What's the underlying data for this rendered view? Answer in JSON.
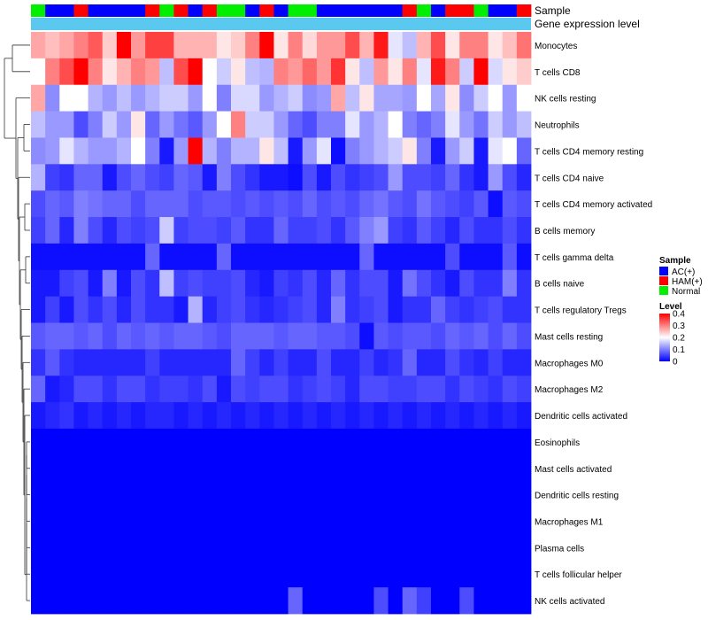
{
  "chart_data": {
    "type": "heatmap",
    "title": "",
    "annotation_rows": [
      "Sample",
      "Gene expression level"
    ],
    "legend": {
      "position": "right",
      "sample_title": "Sample",
      "sample_entries": [
        {
          "label": "AC(+)",
          "color": "#0000ff"
        },
        {
          "label": "HAM(+)",
          "color": "#ff0000"
        },
        {
          "label": "Normal",
          "color": "#00ee00"
        }
      ],
      "level_title": "Level",
      "level_ticks": [
        "0.4",
        "0.3",
        "0.2",
        "0.1",
        "0"
      ],
      "level_range": [
        0,
        0.4
      ],
      "low_color": "#0000ff",
      "mid_color": "#ffffff",
      "high_color": "#ff0000"
    },
    "expression_bar_color": "#5bc8f0",
    "samples": [
      "N",
      "A",
      "A",
      "H",
      "A",
      "A",
      "A",
      "A",
      "H",
      "N",
      "H",
      "A",
      "H",
      "N",
      "N",
      "A",
      "H",
      "A",
      "N",
      "N",
      "A",
      "A",
      "A",
      "A",
      "A",
      "A",
      "H",
      "N",
      "A",
      "H",
      "H",
      "N",
      "A",
      "A",
      "H"
    ],
    "rows": [
      "Monocytes",
      "T cells CD8",
      "NK cells resting",
      "Neutrophils",
      "T cells CD4 memory resting",
      "T cells CD4 naive",
      "T cells CD4 memory activated",
      "B cells memory",
      "T cells gamma delta",
      "B cells naive",
      "T cells regulatory  Tregs",
      "Mast cells resting",
      "Macrophages M0",
      "Macrophages M2",
      "Dendritic cells activated",
      "Eosinophils",
      "Mast cells activated",
      "Dendritic cells resting",
      "Macrophages M1",
      "Plasma cells",
      "T cells follicular helper",
      "NK cells activated"
    ],
    "values": [
      [
        0.27,
        0.25,
        0.27,
        0.3,
        0.33,
        0.24,
        0.4,
        0.28,
        0.35,
        0.35,
        0.26,
        0.26,
        0.26,
        0.22,
        0.24,
        0.3,
        0.4,
        0.22,
        0.3,
        0.23,
        0.28,
        0.28,
        0.34,
        0.26,
        0.38,
        0.18,
        0.15,
        0.26,
        0.34,
        0.22,
        0.3,
        0.3,
        0.22,
        0.25,
        0.31
      ],
      [
        0.2,
        0.3,
        0.34,
        0.4,
        0.3,
        0.22,
        0.26,
        0.3,
        0.28,
        0.15,
        0.34,
        0.4,
        0.2,
        0.16,
        0.22,
        0.15,
        0.14,
        0.3,
        0.28,
        0.32,
        0.28,
        0.36,
        0.22,
        0.15,
        0.28,
        0.22,
        0.3,
        0.18,
        0.38,
        0.3,
        0.16,
        0.4,
        0.17,
        0.22,
        0.24
      ],
      [
        0.27,
        0.11,
        0.2,
        0.2,
        0.14,
        0.12,
        0.15,
        0.12,
        0.14,
        0.16,
        0.16,
        0.12,
        0.2,
        0.1,
        0.17,
        0.17,
        0.12,
        0.14,
        0.16,
        0.11,
        0.12,
        0.27,
        0.15,
        0.22,
        0.13,
        0.13,
        0.12,
        0.2,
        0.13,
        0.22,
        0.11,
        0.16,
        0.2,
        0.12,
        0.2
      ],
      [
        0.15,
        0.12,
        0.12,
        0.06,
        0.1,
        0.16,
        0.12,
        0.22,
        0.08,
        0.12,
        0.09,
        0.07,
        0.12,
        0.2,
        0.3,
        0.16,
        0.16,
        0.12,
        0.08,
        0.06,
        0.1,
        0.1,
        0.18,
        0.12,
        0.14,
        0.2,
        0.1,
        0.08,
        0.1,
        0.18,
        0.12,
        0.09,
        0.16,
        0.12,
        0.15
      ],
      [
        0.11,
        0.12,
        0.18,
        0.14,
        0.12,
        0.12,
        0.14,
        0.2,
        0.1,
        0.02,
        0.12,
        0.4,
        0.14,
        0.1,
        0.14,
        0.14,
        0.22,
        0.15,
        0.02,
        0.12,
        0.18,
        0.01,
        0.1,
        0.12,
        0.14,
        0.16,
        0.22,
        0.1,
        0.02,
        0.12,
        0.16,
        0.02,
        0.18,
        0.2,
        0.08
      ],
      [
        0.14,
        0.05,
        0.04,
        0.08,
        0.08,
        0.02,
        0.06,
        0.08,
        0.06,
        0.05,
        0.08,
        0.07,
        0.02,
        0.1,
        0.06,
        0.04,
        0.02,
        0.02,
        0.01,
        0.06,
        0.02,
        0.06,
        0.04,
        0.05,
        0.06,
        0.12,
        0.06,
        0.06,
        0.05,
        0.08,
        0.04,
        0.02,
        0.12,
        0.06,
        0.03
      ],
      [
        0.06,
        0.08,
        0.07,
        0.1,
        0.09,
        0.08,
        0.08,
        0.06,
        0.08,
        0.08,
        0.08,
        0.06,
        0.07,
        0.07,
        0.06,
        0.07,
        0.06,
        0.07,
        0.06,
        0.08,
        0.06,
        0.07,
        0.06,
        0.08,
        0.09,
        0.07,
        0.06,
        0.09,
        0.07,
        0.06,
        0.05,
        0.07,
        0.01,
        0.07,
        0.06
      ],
      [
        0.05,
        0.08,
        0.03,
        0.1,
        0.06,
        0.03,
        0.06,
        0.05,
        0.06,
        0.16,
        0.05,
        0.06,
        0.06,
        0.05,
        0.07,
        0.04,
        0.04,
        0.08,
        0.05,
        0.05,
        0.06,
        0.04,
        0.07,
        0.1,
        0.12,
        0.05,
        0.04,
        0.07,
        0.05,
        0.03,
        0.06,
        0.04,
        0.04,
        0.06,
        0.04
      ],
      [
        0.01,
        0.01,
        0.01,
        0.01,
        0.01,
        0.01,
        0.01,
        0.01,
        0.08,
        0.01,
        0.01,
        0.01,
        0.01,
        0.08,
        0.01,
        0.01,
        0.01,
        0.01,
        0.01,
        0.01,
        0.01,
        0.01,
        0.01,
        0.08,
        0.01,
        0.01,
        0.01,
        0.01,
        0.01,
        0.06,
        0.01,
        0.01,
        0.01,
        0.07,
        0.01
      ],
      [
        0.02,
        0.02,
        0.05,
        0.06,
        0.02,
        0.1,
        0.02,
        0.06,
        0.04,
        0.15,
        0.05,
        0.06,
        0.05,
        0.05,
        0.06,
        0.03,
        0.02,
        0.05,
        0.04,
        0.06,
        0.03,
        0.08,
        0.04,
        0.06,
        0.06,
        0.02,
        0.09,
        0.06,
        0.04,
        0.02,
        0.06,
        0.04,
        0.04,
        0.1,
        0.04
      ],
      [
        0.02,
        0.05,
        0.02,
        0.06,
        0.04,
        0.06,
        0.03,
        0.06,
        0.04,
        0.04,
        0.02,
        0.14,
        0.03,
        0.05,
        0.06,
        0.04,
        0.03,
        0.04,
        0.05,
        0.06,
        0.03,
        0.1,
        0.04,
        0.05,
        0.06,
        0.02,
        0.04,
        0.04,
        0.08,
        0.05,
        0.04,
        0.05,
        0.06,
        0.04,
        0.04
      ],
      [
        0.07,
        0.08,
        0.08,
        0.07,
        0.08,
        0.06,
        0.08,
        0.07,
        0.08,
        0.07,
        0.08,
        0.08,
        0.07,
        0.06,
        0.08,
        0.08,
        0.08,
        0.07,
        0.08,
        0.08,
        0.07,
        0.07,
        0.06,
        0.01,
        0.07,
        0.06,
        0.07,
        0.07,
        0.06,
        0.08,
        0.07,
        0.08,
        0.06,
        0.08,
        0.06
      ],
      [
        0.04,
        0.07,
        0.04,
        0.03,
        0.03,
        0.03,
        0.03,
        0.03,
        0.05,
        0.03,
        0.03,
        0.03,
        0.03,
        0.03,
        0.08,
        0.05,
        0.03,
        0.05,
        0.03,
        0.03,
        0.06,
        0.03,
        0.03,
        0.05,
        0.03,
        0.04,
        0.08,
        0.03,
        0.03,
        0.06,
        0.04,
        0.03,
        0.05,
        0.03,
        0.03
      ],
      [
        0.08,
        0.02,
        0.03,
        0.06,
        0.06,
        0.04,
        0.06,
        0.06,
        0.04,
        0.05,
        0.05,
        0.04,
        0.06,
        0.02,
        0.06,
        0.05,
        0.06,
        0.06,
        0.04,
        0.05,
        0.06,
        0.05,
        0.03,
        0.06,
        0.06,
        0.05,
        0.05,
        0.06,
        0.06,
        0.04,
        0.06,
        0.05,
        0.04,
        0.06,
        0.05
      ],
      [
        0.02,
        0.03,
        0.04,
        0.02,
        0.03,
        0.02,
        0.03,
        0.02,
        0.03,
        0.03,
        0.02,
        0.03,
        0.02,
        0.03,
        0.02,
        0.03,
        0.02,
        0.03,
        0.02,
        0.03,
        0.02,
        0.03,
        0.02,
        0.03,
        0.02,
        0.03,
        0.02,
        0.03,
        0.02,
        0.03,
        0.02,
        0.03,
        0.02,
        0.03,
        0.02
      ],
      [
        0,
        0,
        0,
        0,
        0,
        0,
        0,
        0,
        0,
        0,
        0,
        0,
        0,
        0,
        0,
        0,
        0,
        0,
        0,
        0,
        0,
        0,
        0,
        0,
        0,
        0,
        0,
        0,
        0,
        0,
        0,
        0,
        0,
        0,
        0
      ],
      [
        0,
        0,
        0,
        0,
        0,
        0,
        0,
        0,
        0,
        0,
        0,
        0,
        0,
        0,
        0,
        0,
        0,
        0,
        0,
        0,
        0,
        0,
        0,
        0,
        0,
        0,
        0,
        0,
        0,
        0,
        0,
        0,
        0,
        0,
        0
      ],
      [
        0,
        0,
        0,
        0,
        0,
        0,
        0,
        0,
        0,
        0,
        0,
        0,
        0,
        0,
        0,
        0,
        0,
        0,
        0,
        0,
        0,
        0,
        0,
        0,
        0,
        0,
        0,
        0,
        0,
        0,
        0,
        0,
        0,
        0,
        0
      ],
      [
        0,
        0,
        0,
        0,
        0,
        0,
        0,
        0,
        0,
        0,
        0,
        0,
        0,
        0,
        0,
        0,
        0,
        0,
        0,
        0,
        0,
        0,
        0,
        0,
        0,
        0,
        0,
        0,
        0,
        0,
        0,
        0,
        0,
        0,
        0
      ],
      [
        0,
        0,
        0,
        0,
        0,
        0,
        0,
        0,
        0,
        0,
        0,
        0,
        0,
        0,
        0,
        0,
        0,
        0,
        0,
        0,
        0,
        0,
        0,
        0,
        0,
        0,
        0,
        0,
        0,
        0,
        0,
        0,
        0,
        0,
        0
      ],
      [
        0,
        0,
        0,
        0,
        0,
        0,
        0,
        0,
        0,
        0,
        0,
        0,
        0,
        0,
        0,
        0,
        0,
        0,
        0,
        0,
        0,
        0,
        0,
        0,
        0,
        0,
        0,
        0,
        0,
        0,
        0,
        0,
        0,
        0,
        0
      ],
      [
        0,
        0,
        0,
        0,
        0,
        0,
        0,
        0,
        0,
        0,
        0,
        0,
        0,
        0,
        0,
        0,
        0,
        0,
        0,
        0,
        0,
        0,
        0,
        0,
        0,
        0,
        0,
        0,
        0,
        0,
        0,
        0,
        0,
        0,
        0
      ]
    ],
    "overrides": [
      {
        "row": 21,
        "col": 18,
        "value": 0.08
      },
      {
        "row": 21,
        "col": 24,
        "value": 0.06
      },
      {
        "row": 21,
        "col": 26,
        "value": 0.08
      },
      {
        "row": 21,
        "col": 27,
        "value": 0.05
      },
      {
        "row": 21,
        "col": 30,
        "value": 0.06
      }
    ]
  }
}
